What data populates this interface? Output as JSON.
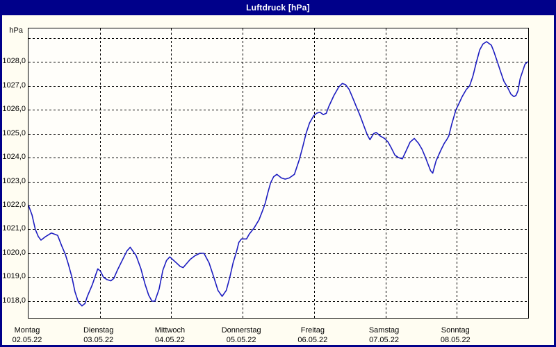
{
  "window": {
    "title": "Luftdruck [hPa]"
  },
  "colors": {
    "titlebar_bg": "#00008a",
    "window_border": "#00008a",
    "title_text": "#ffffff",
    "content_bg": "#fffdf2",
    "plot_bg": "#fffefa",
    "grid": "#000000",
    "axis": "#000000",
    "curve": "#1c1cc0",
    "label_text": "#000000"
  },
  "chart_data": {
    "type": "line",
    "title": "Luftdruck [hPa]",
    "ylabel": "hPa",
    "grid": "dashed",
    "legend": "none",
    "y_axis": {
      "unit_label": "hPa",
      "min": 1017.3,
      "max": 1029.4,
      "ticks": [
        {
          "value": 1018,
          "label": "1018,0"
        },
        {
          "value": 1019,
          "label": "1019,0"
        },
        {
          "value": 1020,
          "label": "1020,0"
        },
        {
          "value": 1021,
          "label": "1021,0"
        },
        {
          "value": 1022,
          "label": "1022,0"
        },
        {
          "value": 1023,
          "label": "1023,0"
        },
        {
          "value": 1024,
          "label": "1024,0"
        },
        {
          "value": 1025,
          "label": "1025,0"
        },
        {
          "value": 1026,
          "label": "1026,0"
        },
        {
          "value": 1027,
          "label": "1027,0"
        },
        {
          "value": 1028,
          "label": "1028,0"
        },
        {
          "value": 1029,
          "label": ""
        }
      ]
    },
    "x_axis": {
      "hours_span": 168,
      "days": [
        {
          "name": "Montag",
          "date": "02.05.22"
        },
        {
          "name": "Dienstag",
          "date": "03.05.22"
        },
        {
          "name": "Mittwoch",
          "date": "04.05.22"
        },
        {
          "name": "Donnerstag",
          "date": "05.05.22"
        },
        {
          "name": "Freitag",
          "date": "06.05.22"
        },
        {
          "name": "Samstag",
          "date": "07.05.22"
        },
        {
          "name": "Sonntag",
          "date": "08.05.22"
        }
      ]
    },
    "series": [
      {
        "name": "Luftdruck",
        "unit": "hPa",
        "points_format": [
          "hours_since_monday_00",
          "hPa"
        ],
        "points": [
          [
            0,
            1022.0
          ],
          [
            1.2,
            1021.6
          ],
          [
            2.3,
            1021.0
          ],
          [
            3.3,
            1020.7
          ],
          [
            4.2,
            1020.55
          ],
          [
            5.8,
            1020.7
          ],
          [
            7.7,
            1020.85
          ],
          [
            9.8,
            1020.75
          ],
          [
            11.2,
            1020.3
          ],
          [
            12.4,
            1019.95
          ],
          [
            13.4,
            1019.55
          ],
          [
            14.6,
            1019.0
          ],
          [
            15.6,
            1018.4
          ],
          [
            16.8,
            1017.95
          ],
          [
            18,
            1017.8
          ],
          [
            19,
            1017.9
          ],
          [
            19.8,
            1018.2
          ],
          [
            21.5,
            1018.7
          ],
          [
            22.6,
            1019.1
          ],
          [
            23.3,
            1019.35
          ],
          [
            24.2,
            1019.25
          ],
          [
            25.2,
            1019.0
          ],
          [
            26.4,
            1018.9
          ],
          [
            27.7,
            1018.85
          ],
          [
            28.7,
            1018.95
          ],
          [
            29.9,
            1019.3
          ],
          [
            31.5,
            1019.7
          ],
          [
            33.1,
            1020.1
          ],
          [
            34.2,
            1020.25
          ],
          [
            36.2,
            1019.9
          ],
          [
            37.8,
            1019.35
          ],
          [
            39.2,
            1018.7
          ],
          [
            40.4,
            1018.25
          ],
          [
            41.5,
            1018.0
          ],
          [
            42.5,
            1018.0
          ],
          [
            43.9,
            1018.5
          ],
          [
            45.2,
            1019.3
          ],
          [
            46.4,
            1019.7
          ],
          [
            47.5,
            1019.85
          ],
          [
            49.7,
            1019.6
          ],
          [
            51,
            1019.45
          ],
          [
            52,
            1019.4
          ],
          [
            54.4,
            1019.75
          ],
          [
            56,
            1019.9
          ],
          [
            57.6,
            1020.0
          ],
          [
            59,
            1020.0
          ],
          [
            60.7,
            1019.6
          ],
          [
            62.3,
            1019.0
          ],
          [
            63.7,
            1018.45
          ],
          [
            65.1,
            1018.2
          ],
          [
            66.5,
            1018.45
          ],
          [
            67.7,
            1019.0
          ],
          [
            68.8,
            1019.6
          ],
          [
            70,
            1020.1
          ],
          [
            70.7,
            1020.45
          ],
          [
            71.6,
            1020.6
          ],
          [
            73.3,
            1020.6
          ],
          [
            74.2,
            1020.8
          ],
          [
            75.8,
            1021.05
          ],
          [
            77.5,
            1021.4
          ],
          [
            78.6,
            1021.75
          ],
          [
            79.6,
            1022.1
          ],
          [
            80.4,
            1022.5
          ],
          [
            81.4,
            1022.95
          ],
          [
            82.4,
            1023.2
          ],
          [
            83.5,
            1023.3
          ],
          [
            85,
            1023.15
          ],
          [
            86.3,
            1023.1
          ],
          [
            87.7,
            1023.15
          ],
          [
            89.4,
            1023.3
          ],
          [
            91,
            1023.9
          ],
          [
            92.2,
            1024.45
          ],
          [
            93.3,
            1025.0
          ],
          [
            94.5,
            1025.45
          ],
          [
            95.9,
            1025.75
          ],
          [
            96.8,
            1025.85
          ],
          [
            98,
            1025.9
          ],
          [
            99.1,
            1025.8
          ],
          [
            100.1,
            1025.85
          ],
          [
            101,
            1026.15
          ],
          [
            102.7,
            1026.6
          ],
          [
            104.3,
            1026.95
          ],
          [
            105.5,
            1027.1
          ],
          [
            106.6,
            1027.05
          ],
          [
            107.8,
            1026.85
          ],
          [
            109,
            1026.5
          ],
          [
            110.3,
            1026.1
          ],
          [
            111.5,
            1025.75
          ],
          [
            112.7,
            1025.35
          ],
          [
            113.9,
            1024.95
          ],
          [
            114.8,
            1024.75
          ],
          [
            116,
            1025.0
          ],
          [
            116.9,
            1025.05
          ],
          [
            118.3,
            1024.9
          ],
          [
            119.7,
            1024.8
          ],
          [
            120.9,
            1024.65
          ],
          [
            122,
            1024.4
          ],
          [
            123.2,
            1024.1
          ],
          [
            124.4,
            1024.0
          ],
          [
            125.7,
            1023.95
          ],
          [
            127.2,
            1024.35
          ],
          [
            128.3,
            1024.65
          ],
          [
            129.7,
            1024.8
          ],
          [
            131.1,
            1024.6
          ],
          [
            132.3,
            1024.35
          ],
          [
            133.5,
            1024.0
          ],
          [
            134.4,
            1023.7
          ],
          [
            135.2,
            1023.45
          ],
          [
            135.9,
            1023.35
          ],
          [
            137,
            1023.85
          ],
          [
            137.5,
            1024.0
          ],
          [
            138.8,
            1024.35
          ],
          [
            139.8,
            1024.6
          ],
          [
            140.6,
            1024.75
          ],
          [
            141.3,
            1024.9
          ],
          [
            142.3,
            1025.4
          ],
          [
            143.7,
            1026.0
          ],
          [
            144.5,
            1026.2
          ],
          [
            145.8,
            1026.55
          ],
          [
            147.2,
            1026.85
          ],
          [
            148.3,
            1027.0
          ],
          [
            149.4,
            1027.4
          ],
          [
            150.5,
            1027.95
          ],
          [
            151.7,
            1028.5
          ],
          [
            152.8,
            1028.75
          ],
          [
            154,
            1028.85
          ],
          [
            155.6,
            1028.7
          ],
          [
            156.4,
            1028.45
          ],
          [
            157.5,
            1028.05
          ],
          [
            158.7,
            1027.6
          ],
          [
            159.8,
            1027.2
          ],
          [
            161,
            1026.95
          ],
          [
            162.2,
            1026.65
          ],
          [
            163.2,
            1026.55
          ],
          [
            163.9,
            1026.6
          ],
          [
            164.6,
            1026.8
          ],
          [
            165.3,
            1027.3
          ],
          [
            166.1,
            1027.6
          ],
          [
            166.9,
            1027.9
          ],
          [
            167.8,
            1028.0
          ]
        ]
      }
    ]
  }
}
